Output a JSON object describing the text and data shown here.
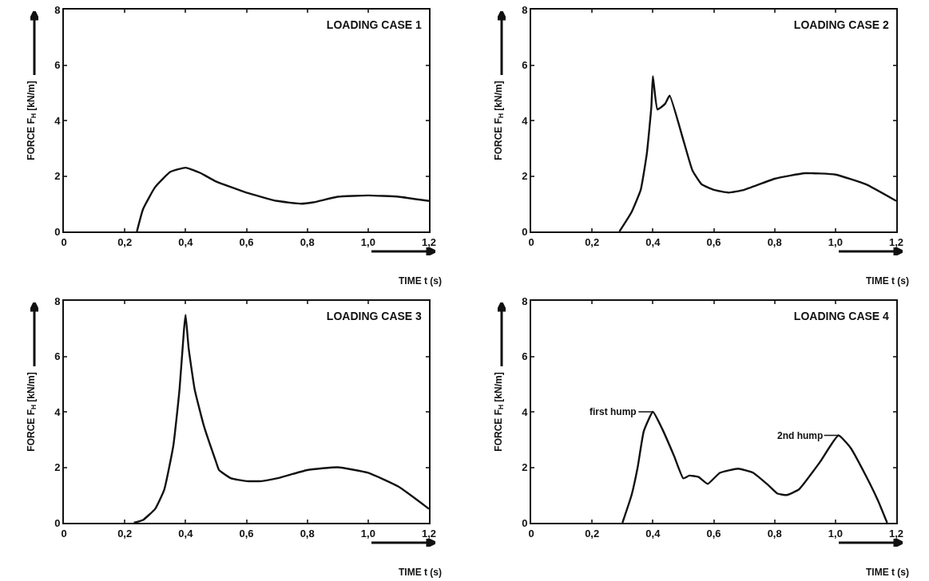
{
  "chart_data": [
    {
      "type": "line",
      "title": "LOADING CASE 1",
      "xlabel": "TIME t (s)",
      "ylabel": "FORCE F$_{H}$ [kN/m]",
      "xlim": [
        0,
        1.2
      ],
      "ylim": [
        0,
        8
      ],
      "xticks": [
        {
          "value": 0,
          "label": "0"
        },
        {
          "value": 0.2,
          "label": "0,2"
        },
        {
          "value": 0.4,
          "label": "0,4"
        },
        {
          "value": 0.6,
          "label": "0,6"
        },
        {
          "value": 0.8,
          "label": "0,8"
        },
        {
          "value": 1.0,
          "label": "1,0"
        },
        {
          "value": 1.2,
          "label": "1,2"
        }
      ],
      "yticks": [
        0,
        2,
        4,
        6,
        8
      ],
      "grid": false,
      "marker": "none",
      "line_style": "solid",
      "series": [
        {
          "color": "#111111",
          "x": [
            0.24,
            0.26,
            0.3,
            0.35,
            0.4,
            0.45,
            0.5,
            0.6,
            0.7,
            0.78,
            0.82,
            0.9,
            1.0,
            1.1,
            1.2
          ],
          "values": [
            0,
            0.8,
            1.6,
            2.15,
            2.3,
            2.1,
            1.8,
            1.4,
            1.1,
            1.0,
            1.05,
            1.25,
            1.3,
            1.25,
            1.1
          ]
        }
      ]
    },
    {
      "type": "line",
      "title": "LOADING CASE 2",
      "xlabel": "TIME t (s)",
      "ylabel": "FORCE F$_{H}$ [kN/m]",
      "xlim": [
        0,
        1.2
      ],
      "ylim": [
        0,
        8
      ],
      "xticks": [
        {
          "value": 0,
          "label": "0"
        },
        {
          "value": 0.2,
          "label": "0,2"
        },
        {
          "value": 0.4,
          "label": "0,4"
        },
        {
          "value": 0.6,
          "label": "0,6"
        },
        {
          "value": 0.8,
          "label": "0,8"
        },
        {
          "value": 1.0,
          "label": "1,0"
        },
        {
          "value": 1.2,
          "label": "1,2"
        }
      ],
      "yticks": [
        0,
        2,
        4,
        6,
        8
      ],
      "grid": false,
      "marker": "none",
      "line_style": "solid",
      "series": [
        {
          "color": "#111111",
          "x": [
            0.29,
            0.33,
            0.36,
            0.38,
            0.395,
            0.4,
            0.415,
            0.44,
            0.455,
            0.5,
            0.53,
            0.56,
            0.6,
            0.65,
            0.7,
            0.8,
            0.9,
            1.0,
            1.1,
            1.2
          ],
          "values": [
            0,
            0.7,
            1.5,
            2.8,
            4.5,
            5.6,
            4.4,
            4.6,
            4.9,
            3.3,
            2.2,
            1.7,
            1.5,
            1.4,
            1.5,
            1.9,
            2.1,
            2.05,
            1.7,
            1.1
          ]
        }
      ]
    },
    {
      "type": "line",
      "title": "LOADING CASE 3",
      "xlabel": "TIME t (s)",
      "ylabel": "FORCE F$_{H}$ [kN/m]",
      "xlim": [
        0,
        1.2
      ],
      "ylim": [
        0,
        8
      ],
      "xticks": [
        {
          "value": 0,
          "label": "0"
        },
        {
          "value": 0.2,
          "label": "0,2"
        },
        {
          "value": 0.4,
          "label": "0,4"
        },
        {
          "value": 0.6,
          "label": "0,6"
        },
        {
          "value": 0.8,
          "label": "0,8"
        },
        {
          "value": 1.0,
          "label": "1,0"
        },
        {
          "value": 1.2,
          "label": "1,2"
        }
      ],
      "yticks": [
        0,
        2,
        4,
        6,
        8
      ],
      "grid": false,
      "marker": "none",
      "line_style": "solid",
      "series": [
        {
          "color": "#111111",
          "x": [
            0.23,
            0.26,
            0.3,
            0.33,
            0.36,
            0.38,
            0.395,
            0.4,
            0.41,
            0.43,
            0.46,
            0.5,
            0.51,
            0.55,
            0.6,
            0.65,
            0.7,
            0.8,
            0.9,
            1.0,
            1.1,
            1.2
          ],
          "values": [
            0,
            0.1,
            0.5,
            1.2,
            2.8,
            4.8,
            7.0,
            7.5,
            6.3,
            4.8,
            3.5,
            2.2,
            1.9,
            1.6,
            1.5,
            1.5,
            1.6,
            1.9,
            2.0,
            1.8,
            1.3,
            0.5
          ]
        }
      ]
    },
    {
      "type": "line",
      "title": "LOADING CASE 4",
      "xlabel": "TIME t (s)",
      "ylabel": "FORCE F$_{H}$ [kN/m]",
      "xlim": [
        0,
        1.2
      ],
      "ylim": [
        0,
        8
      ],
      "xticks": [
        {
          "value": 0,
          "label": "0"
        },
        {
          "value": 0.2,
          "label": "0,2"
        },
        {
          "value": 0.4,
          "label": "0,4"
        },
        {
          "value": 0.6,
          "label": "0,6"
        },
        {
          "value": 0.8,
          "label": "0,8"
        },
        {
          "value": 1.0,
          "label": "1,0"
        },
        {
          "value": 1.2,
          "label": "1,2"
        }
      ],
      "yticks": [
        0,
        2,
        4,
        6,
        8
      ],
      "grid": false,
      "marker": "none",
      "line_style": "solid",
      "annotations": [
        {
          "text": "first hump",
          "x": 0.4,
          "y": 4.0
        },
        {
          "text": "2nd hump",
          "x": 1.01,
          "y": 3.15
        }
      ],
      "series": [
        {
          "color": "#111111",
          "x": [
            0.3,
            0.33,
            0.35,
            0.37,
            0.4,
            0.43,
            0.47,
            0.5,
            0.52,
            0.55,
            0.58,
            0.62,
            0.68,
            0.73,
            0.78,
            0.81,
            0.84,
            0.88,
            0.95,
            1.01,
            1.05,
            1.1,
            1.14,
            1.17
          ],
          "values": [
            0,
            1,
            2,
            3.3,
            4.0,
            3.4,
            2.4,
            1.6,
            1.7,
            1.65,
            1.4,
            1.8,
            1.95,
            1.8,
            1.35,
            1.05,
            1.0,
            1.2,
            2.2,
            3.15,
            2.7,
            1.7,
            0.8,
            0
          ]
        }
      ]
    }
  ]
}
